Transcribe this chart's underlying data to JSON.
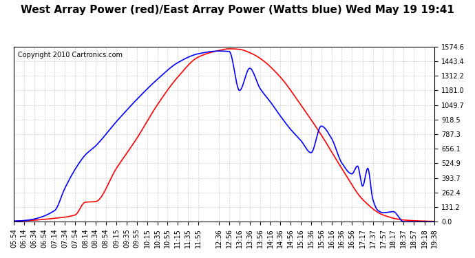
{
  "title": "West Array Power (red)/East Array Power (Watts blue) Wed May 19 19:41",
  "copyright": "Copyright 2010 Cartronics.com",
  "background_color": "#ffffff",
  "plot_bg_color": "#ffffff",
  "grid_color": "#cccccc",
  "yticks": [
    0.0,
    131.2,
    262.4,
    393.7,
    524.9,
    656.1,
    787.3,
    918.5,
    1049.7,
    1181.0,
    1312.2,
    1443.4,
    1574.6
  ],
  "ymax": 1574.6,
  "xtick_labels": [
    "05:54",
    "06:14",
    "06:34",
    "06:54",
    "07:14",
    "07:34",
    "07:54",
    "08:14",
    "08:34",
    "08:54",
    "09:15",
    "09:35",
    "09:55",
    "10:15",
    "10:35",
    "10:55",
    "11:15",
    "11:35",
    "11:55",
    "12:36",
    "12:56",
    "13:16",
    "13:36",
    "13:56",
    "14:16",
    "14:36",
    "14:56",
    "15:16",
    "15:36",
    "15:56",
    "16:16",
    "16:36",
    "16:56",
    "17:17",
    "17:37",
    "17:57",
    "18:17",
    "18:37",
    "18:57",
    "19:18",
    "19:38"
  ],
  "red_color": "#ff0000",
  "blue_color": "#0000ff",
  "title_fontsize": 11,
  "copyright_fontsize": 7,
  "tick_fontsize": 7,
  "linewidth": 1.2
}
